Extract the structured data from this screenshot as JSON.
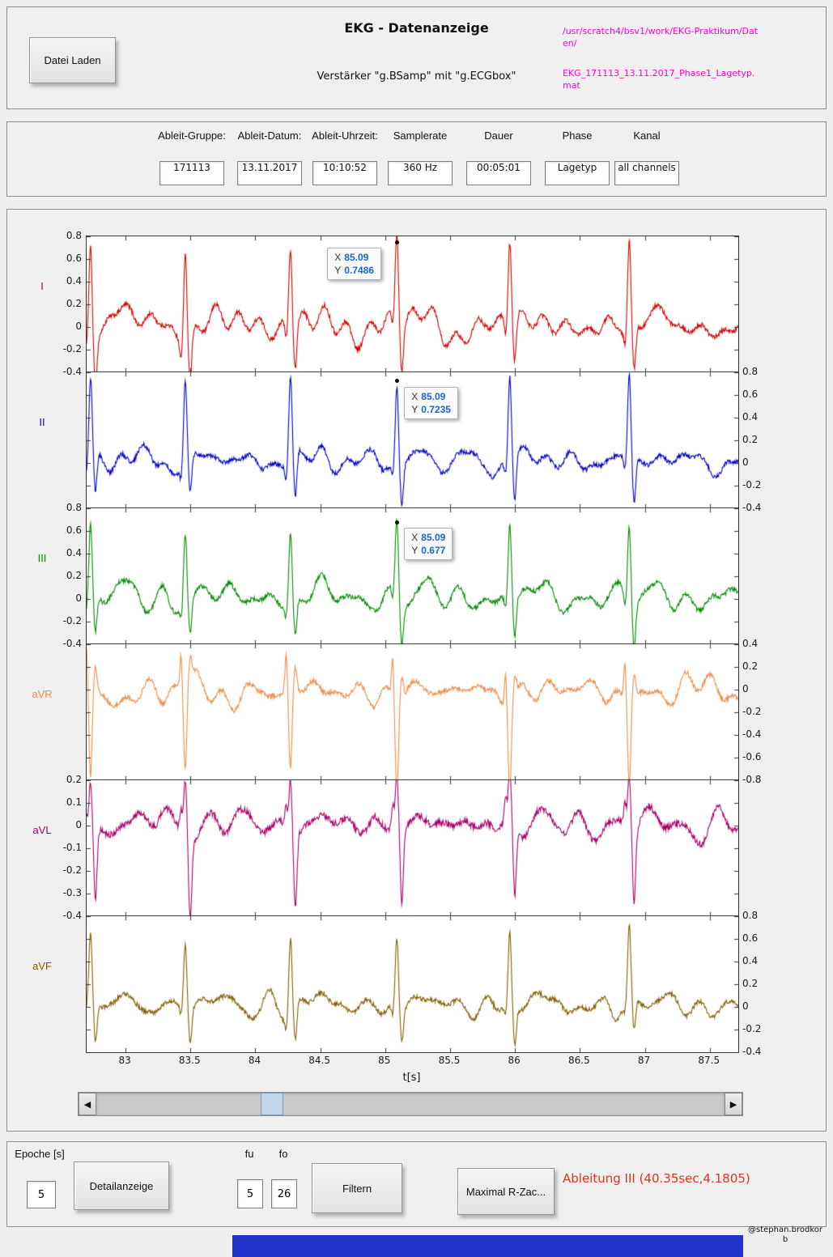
{
  "header": {
    "load_button_label": "Datei Laden",
    "title": "EKG - Datenanzeige",
    "subtitle": "Verstärker \"g.BSamp\" mit \"g.ECGbox\"",
    "file_path_dir": "/usr/scratch4/bsv1/work/EKG-Praktikum/Daten/",
    "file_path_name": "EKG_171113_13.11.2017_Phase1_Lagetyp.mat"
  },
  "info_fields": [
    {
      "label": "Ableit-Gruppe:",
      "value": "171113"
    },
    {
      "label": "Ableit-Datum:",
      "value": "13.11.2017"
    },
    {
      "label": "Ableit-Uhrzeit:",
      "value": "10:10:52"
    },
    {
      "label": "Samplerate",
      "value": "360 Hz"
    },
    {
      "label": "Dauer",
      "value": "00:05:01"
    },
    {
      "label": "Phase",
      "value": "Lagetyp"
    },
    {
      "label": "Kanal",
      "value": "all channels"
    }
  ],
  "chart_data": {
    "type": "line",
    "title": "",
    "xlabel": "t[s]",
    "grid": false,
    "x_range": [
      82.7,
      87.72
    ],
    "x_ticks": [
      83,
      83.5,
      84,
      84.5,
      85,
      85.5,
      86,
      86.5,
      87,
      87.5
    ],
    "beat_times": [
      82.73,
      83.46,
      84.27,
      85.09,
      85.96,
      86.88
    ],
    "cursor_labels": {
      "x": "X",
      "y": "Y"
    },
    "leads": [
      {
        "name": "I",
        "color": "#d40000",
        "axis_side": "left",
        "ylim": [
          -0.4,
          0.8
        ],
        "y_ticks": [
          0.8,
          0.6,
          0.4,
          0.2,
          0,
          -0.2,
          -0.4
        ],
        "wave": {
          "p": 0.05,
          "pre": -0.12,
          "r": 0.76,
          "post": -0.38,
          "t": 0.1,
          "noise": 0.045
        },
        "cursor": {
          "x": 85.09,
          "y": 0.7486,
          "x_text": "85.09",
          "y_text": "0.7486",
          "side": "left"
        }
      },
      {
        "name": "II",
        "color": "#0000cc",
        "axis_side": "right",
        "ylim": [
          -0.4,
          0.8
        ],
        "y_ticks": [
          0.8,
          0.6,
          0.4,
          0.2,
          0,
          -0.2,
          -0.4
        ],
        "wave": {
          "p": 0.06,
          "pre": -0.1,
          "r": 0.73,
          "post": -0.36,
          "t": 0.11,
          "noise": 0.045
        },
        "cursor": {
          "x": 85.09,
          "y": 0.7235,
          "x_text": "85.09",
          "y_text": "0.7235",
          "side": "right"
        }
      },
      {
        "name": "III",
        "color": "#008a00",
        "axis_side": "left",
        "ylim": [
          -0.4,
          0.8
        ],
        "y_ticks": [
          0.8,
          0.6,
          0.4,
          0.2,
          0,
          -0.2,
          -0.4
        ],
        "wave": {
          "p": 0.05,
          "pre": -0.09,
          "r": 0.66,
          "post": -0.33,
          "t": 0.09,
          "noise": 0.045
        },
        "cursor": {
          "x": 85.09,
          "y": 0.677,
          "x_text": "85.09",
          "y_text": "0.677",
          "side": "right"
        }
      },
      {
        "name": "aVR",
        "color": "#ee8c4a",
        "axis_side": "right",
        "ylim": [
          -0.8,
          0.4
        ],
        "y_ticks": [
          0.4,
          0.2,
          0,
          -0.2,
          -0.4,
          -0.6,
          -0.8
        ],
        "wave": {
          "p": -0.04,
          "pre": 0.33,
          "r": -0.76,
          "post": 0.2,
          "t": -0.09,
          "noise": 0.045
        },
        "cursor": null
      },
      {
        "name": "aVL",
        "color": "#aa0066",
        "axis_side": "left",
        "ylim": [
          -0.4,
          0.2
        ],
        "y_ticks": [
          0.2,
          0.1,
          0,
          -0.1,
          -0.2,
          -0.3,
          -0.4
        ],
        "wave": {
          "p": 0.02,
          "pre": 0.1,
          "r": 0.24,
          "post": -0.32,
          "t": 0.03,
          "noise": 0.032
        },
        "cursor": null
      },
      {
        "name": "aVF",
        "color": "#806000",
        "axis_side": "right",
        "ylim": [
          -0.4,
          0.8
        ],
        "y_ticks": [
          0.8,
          0.6,
          0.4,
          0.2,
          0,
          -0.2,
          -0.4
        ],
        "wave": {
          "p": 0.05,
          "pre": -0.08,
          "r": 0.62,
          "post": -0.3,
          "t": 0.1,
          "noise": 0.045
        },
        "cursor": null
      }
    ]
  },
  "icons": {
    "left_arrow": "◀",
    "right_arrow": "▶"
  },
  "controls": {
    "epoche_label": "Epoche [s]",
    "epoche_value": "5",
    "detail_button_label": "Detailanzeige",
    "fu_label": "fu",
    "fo_label": "fo",
    "fu_value": "5",
    "fo_value": "26",
    "filter_button_label": "Filtern",
    "rzac_button_label": "Maximal R-Zac...",
    "status_text": "Ableitung III (40.35sec,4.1805)"
  },
  "footer": {
    "credit": "@stephan.brodkorb"
  },
  "colors": {
    "file_path": "#ff00cc",
    "status": "#e0301e",
    "taskbar": "#2233cc"
  }
}
